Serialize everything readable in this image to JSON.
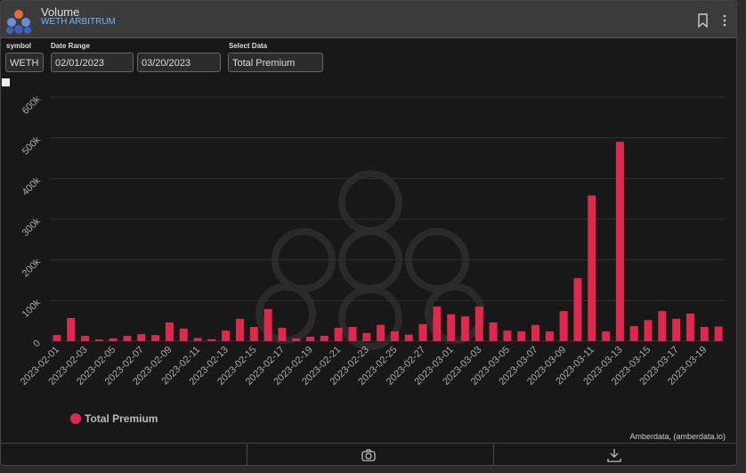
{
  "header": {
    "title": "Volume",
    "subtitle": "WETH ARBITRUM"
  },
  "controls": {
    "symbol_label": "symbol",
    "symbol": "WETH",
    "date_range_label": "Date Range",
    "start_date": "02/01/2023",
    "end_date": "03/20/2023",
    "select_label": "Select Data",
    "select": "Total Premium"
  },
  "chart_data": {
    "type": "bar",
    "categories": [
      "2023-02-01",
      null,
      "2023-02-03",
      null,
      "2023-02-05",
      null,
      "2023-02-07",
      null,
      "2023-02-09",
      null,
      "2023-02-11",
      null,
      "2023-02-13",
      null,
      "2023-02-15",
      null,
      "2023-02-17",
      null,
      "2023-02-19",
      null,
      "2023-02-21",
      null,
      "2023-02-23",
      null,
      "2023-02-25",
      null,
      "2023-02-27",
      null,
      "2023-03-01",
      null,
      "2023-03-03",
      null,
      "2023-03-05",
      null,
      "2023-03-07",
      null,
      "2023-03-09",
      null,
      "2023-03-11",
      null,
      "2023-03-13",
      null,
      "2023-03-15",
      null,
      "2023-03-17",
      null,
      "2023-03-19",
      null
    ],
    "series": [
      {
        "name": "Total Premium",
        "color": "#e0284f",
        "values": [
          15000,
          57000,
          13000,
          4000,
          7000,
          13000,
          17000,
          15000,
          46000,
          31000,
          8000,
          5000,
          26000,
          55000,
          35000,
          79000,
          33000,
          7000,
          11000,
          13000,
          33000,
          35000,
          20000,
          40000,
          24000,
          16000,
          42000,
          85000,
          66000,
          61000,
          85000,
          46000,
          26000,
          24000,
          40000,
          24000,
          74000,
          155000,
          358000,
          24000,
          490000,
          37000,
          52000,
          74000,
          55000,
          68000,
          35000,
          36000
        ]
      }
    ],
    "ylim": [
      0,
      600000
    ],
    "yticks": [
      0,
      {
        "value": 100000,
        "label": "100k"
      },
      {
        "value": 200000,
        "label": "200k"
      },
      {
        "value": 300000,
        "label": "300k"
      },
      {
        "value": 400000,
        "label": "400k"
      },
      {
        "value": 500000,
        "label": "500k"
      },
      {
        "value": 600000,
        "label": "600k"
      }
    ],
    "grid": true,
    "legend": "bottom-left",
    "source": "Amberdata, (amberdata.io)"
  }
}
